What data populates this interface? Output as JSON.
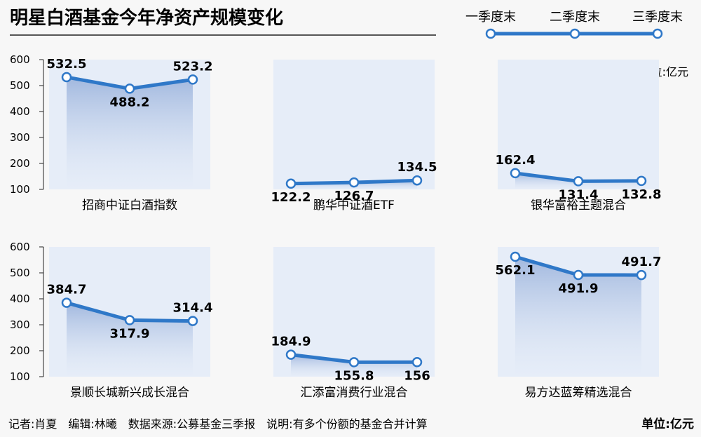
{
  "title": "明星白酒基金今年净资产规模变化",
  "legend": [
    "一季度末",
    "二季度末",
    "三季度末"
  ],
  "unit_label": "单位:亿元",
  "footer": {
    "credits": "记者:肖夏　编辑:林曦　数据来源:公募基金三季报　说明:有多个份额的基金合并计算",
    "unit": "单位:亿元"
  },
  "colors": {
    "line": "#2f78c8",
    "panel": "#e6edf8",
    "marker_fill": "#ffffff"
  },
  "chart_data": {
    "type": "line",
    "y_ticks": [
      600,
      500,
      400,
      300,
      200,
      100
    ],
    "ylim": [
      100,
      600
    ],
    "panels": [
      {
        "name": "招商中证白酒指数",
        "values": [
          532.5,
          488.2,
          523.2
        ],
        "labels": [
          "532.5",
          "488.2",
          "523.2"
        ]
      },
      {
        "name": "鹏华中证酒ETF",
        "values": [
          122.2,
          126.7,
          134.5
        ],
        "labels": [
          "122.2",
          "126.7",
          "134.5"
        ]
      },
      {
        "name": "银华富裕主题混合",
        "values": [
          162.4,
          131.4,
          132.8
        ],
        "labels": [
          "162.4",
          "131.4",
          "132.8"
        ]
      },
      {
        "name": "景顺长城新兴成长混合",
        "values": [
          384.7,
          317.9,
          314.4
        ],
        "labels": [
          "384.7",
          "317.9",
          "314.4"
        ]
      },
      {
        "name": "汇添富消费行业混合",
        "values": [
          184.9,
          155.8,
          156
        ],
        "labels": [
          "184.9",
          "155.8",
          "156"
        ]
      },
      {
        "name": "易方达蓝筹精选混合",
        "values": [
          562.1,
          491.9,
          491.7
        ],
        "labels": [
          "562.1",
          "491.9",
          "491.7"
        ]
      }
    ]
  }
}
